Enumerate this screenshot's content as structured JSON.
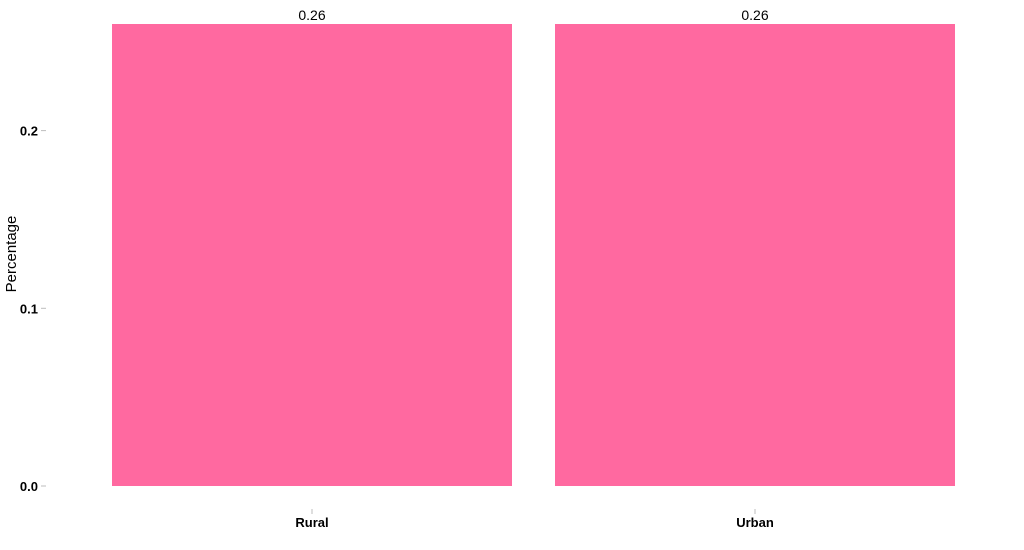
{
  "chart_data": {
    "type": "bar",
    "categories": [
      "Rural",
      "Urban"
    ],
    "values": [
      0.26,
      0.26
    ],
    "data_labels": [
      "0.26",
      "0.26"
    ],
    "ylabel": "Percentage",
    "xlabel": "",
    "ylim": [
      0,
      0.26
    ],
    "yticks": [
      0.0,
      0.1,
      0.2
    ],
    "ytick_labels": [
      "0.0",
      "0.1",
      "0.2"
    ],
    "grid": false,
    "legend": "none",
    "bar_color": "#ff69a0"
  }
}
